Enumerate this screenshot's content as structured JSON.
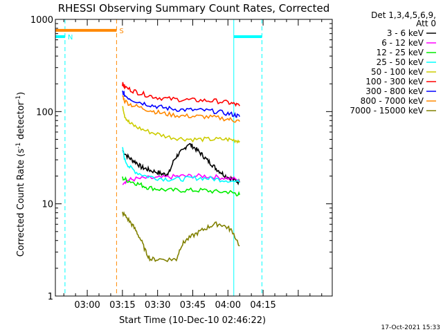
{
  "chart_data": {
    "type": "line",
    "title": "RHESSI Observing Summary Count Rates, Corrected",
    "xlabel": "Start Time (10-Dec-10 02:46:22)",
    "ylabel": "Corrected Count Rate (s",
    "ylabel_sup1": "-1",
    "ylabel_mid": " detector",
    "ylabel_sup2": "-1",
    "ylabel_end": ")",
    "yscale": "log",
    "ylim": [
      1,
      1000
    ],
    "xlim_min": [
      166.4,
      284.5
    ],
    "x_ticks": [
      {
        "m": 180,
        "label": "03:00"
      },
      {
        "m": 195,
        "label": "03:15"
      },
      {
        "m": 210,
        "label": "03:30"
      },
      {
        "m": 225,
        "label": "03:45"
      },
      {
        "m": 240,
        "label": "04:00"
      },
      {
        "m": 255,
        "label": "04:15"
      }
    ],
    "y_ticks": [
      {
        "v": 1,
        "label": "1"
      },
      {
        "v": 10,
        "label": "10"
      },
      {
        "v": 100,
        "label": "100"
      },
      {
        "v": 1000,
        "label": "1000"
      }
    ],
    "legend_header": [
      "Det 1,3,4,5,6,9,",
      "Att 0"
    ],
    "series": [
      {
        "name": "3 - 6 keV",
        "color": "#000000",
        "points": [
          [
            195,
            38
          ],
          [
            197,
            33
          ],
          [
            199,
            30
          ],
          [
            201,
            28
          ],
          [
            203,
            25
          ],
          [
            205,
            24
          ],
          [
            207,
            23
          ],
          [
            210,
            22
          ],
          [
            212,
            21
          ],
          [
            214,
            21
          ],
          [
            215,
            22
          ],
          [
            217,
            30
          ],
          [
            219,
            35
          ],
          [
            221,
            38
          ],
          [
            223,
            45
          ],
          [
            225,
            42
          ],
          [
            227,
            38
          ],
          [
            229,
            34
          ],
          [
            231,
            30
          ],
          [
            233,
            27
          ],
          [
            235,
            24
          ],
          [
            237,
            22
          ],
          [
            239,
            20
          ],
          [
            241,
            19
          ],
          [
            243,
            18
          ],
          [
            245,
            17
          ]
        ]
      },
      {
        "name": "6 - 12 keV",
        "color": "#ff00ff",
        "points": [
          [
            195,
            17
          ],
          [
            197,
            18
          ],
          [
            200,
            18.5
          ],
          [
            205,
            19
          ],
          [
            210,
            19
          ],
          [
            215,
            19.5
          ],
          [
            220,
            20
          ],
          [
            225,
            20
          ],
          [
            230,
            20
          ],
          [
            235,
            19.5
          ],
          [
            240,
            19
          ],
          [
            245,
            18
          ]
        ]
      },
      {
        "name": "12 - 25 keV",
        "color": "#00ee00",
        "points": [
          [
            195,
            19
          ],
          [
            197,
            18
          ],
          [
            200,
            17
          ],
          [
            203,
            16
          ],
          [
            206,
            15
          ],
          [
            210,
            14.5
          ],
          [
            215,
            14
          ],
          [
            220,
            14
          ],
          [
            225,
            14
          ],
          [
            230,
            14
          ],
          [
            235,
            13.5
          ],
          [
            240,
            13.5
          ],
          [
            243,
            13
          ],
          [
            245,
            12.5
          ]
        ]
      },
      {
        "name": "25 - 50 keV",
        "color": "#00ffff",
        "points": [
          [
            195,
            40
          ],
          [
            196,
            30
          ],
          [
            198,
            25
          ],
          [
            201,
            22
          ],
          [
            205,
            20
          ],
          [
            210,
            19
          ],
          [
            215,
            18.5
          ],
          [
            220,
            18.5
          ],
          [
            225,
            19
          ],
          [
            230,
            19
          ],
          [
            235,
            18.5
          ],
          [
            240,
            18
          ],
          [
            245,
            17
          ]
        ]
      },
      {
        "name": "50 - 100 keV",
        "color": "#cccc00",
        "points": [
          [
            195,
            120
          ],
          [
            196,
            90
          ],
          [
            198,
            75
          ],
          [
            201,
            68
          ],
          [
            205,
            62
          ],
          [
            210,
            57
          ],
          [
            215,
            53
          ],
          [
            220,
            51
          ],
          [
            225,
            50
          ],
          [
            230,
            50
          ],
          [
            235,
            50
          ],
          [
            240,
            50
          ],
          [
            243,
            49
          ],
          [
            245,
            48
          ]
        ]
      },
      {
        "name": "100 - 300 keV",
        "color": "#ff0000",
        "points": [
          [
            195,
            200
          ],
          [
            196,
            185
          ],
          [
            199,
            170
          ],
          [
            202,
            160
          ],
          [
            206,
            150
          ],
          [
            210,
            142
          ],
          [
            215,
            137
          ],
          [
            220,
            135
          ],
          [
            225,
            133
          ],
          [
            230,
            132
          ],
          [
            235,
            130
          ],
          [
            240,
            125
          ],
          [
            243,
            120
          ],
          [
            245,
            115
          ]
        ]
      },
      {
        "name": "300 - 800 keV",
        "color": "#0000ff",
        "points": [
          [
            195,
            165
          ],
          [
            196,
            150
          ],
          [
            199,
            135
          ],
          [
            203,
            125
          ],
          [
            207,
            118
          ],
          [
            211,
            112
          ],
          [
            215,
            108
          ],
          [
            220,
            105
          ],
          [
            225,
            104
          ],
          [
            230,
            103
          ],
          [
            235,
            100
          ],
          [
            240,
            95
          ],
          [
            243,
            92
          ],
          [
            245,
            88
          ]
        ]
      },
      {
        "name": "800 - 7000 keV",
        "color": "#ff8800",
        "points": [
          [
            195,
            150
          ],
          [
            196,
            130
          ],
          [
            199,
            118
          ],
          [
            203,
            110
          ],
          [
            207,
            103
          ],
          [
            211,
            97
          ],
          [
            215,
            93
          ],
          [
            220,
            90
          ],
          [
            225,
            89
          ],
          [
            230,
            88
          ],
          [
            235,
            86
          ],
          [
            240,
            83
          ],
          [
            243,
            80
          ],
          [
            245,
            78
          ]
        ]
      },
      {
        "name": "7000 - 15000 keV",
        "color": "#808000",
        "points": [
          [
            195,
            8
          ],
          [
            197,
            7
          ],
          [
            199,
            6
          ],
          [
            201,
            5
          ],
          [
            203,
            4
          ],
          [
            205,
            3
          ],
          [
            207,
            2.5
          ],
          [
            210,
            2.5
          ],
          [
            215,
            2.5
          ],
          [
            218,
            2.5
          ],
          [
            220,
            3.5
          ],
          [
            222,
            4
          ],
          [
            225,
            4.5
          ],
          [
            228,
            5
          ],
          [
            231,
            5.5
          ],
          [
            234,
            6
          ],
          [
            237,
            6
          ],
          [
            240,
            5.5
          ],
          [
            242,
            5
          ],
          [
            245,
            3.5
          ]
        ]
      }
    ],
    "flag_bars": [
      {
        "label": "N",
        "color": "#00ffff",
        "segments": [
          [
            166.4,
            170.5
          ],
          [
            242.5,
            254.5
          ]
        ],
        "level": 650
      },
      {
        "label": "S",
        "color": "#ff8800",
        "segments": [
          [
            166.4,
            192.5
          ]
        ],
        "level": 760
      }
    ],
    "vertical_lines": [
      {
        "m": 170.5,
        "color": "#00ffff",
        "style": "dashed"
      },
      {
        "m": 192.5,
        "color": "#ff8800",
        "style": "dashed"
      },
      {
        "m": 242.5,
        "color": "#00ffff",
        "style": "solid"
      },
      {
        "m": 254.5,
        "color": "#00ffff",
        "style": "dashed"
      }
    ],
    "timestamp": "17-Oct-2021 15:33"
  }
}
